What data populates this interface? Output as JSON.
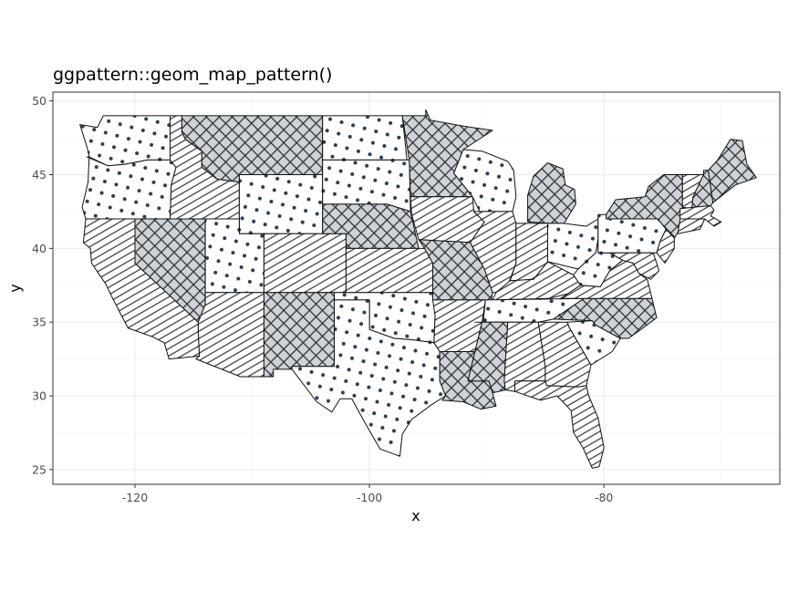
{
  "chart_data": {
    "type": "map",
    "title": "ggpattern::geom_map_pattern()",
    "xlabel": "x",
    "ylabel": "y",
    "xlim": [
      -127,
      -65
    ],
    "ylim": [
      24,
      50.6
    ],
    "x_ticks": [
      -120,
      -100,
      -80
    ],
    "x_tick_labels": [
      "-120",
      "-100",
      "-80"
    ],
    "y_ticks": [
      25,
      30,
      35,
      40,
      45,
      50
    ],
    "y_tick_labels": [
      "25",
      "30",
      "35",
      "40",
      "45",
      "50"
    ],
    "grid": true,
    "legend": "none",
    "patterns": [
      "stripe",
      "crosshatch",
      "circle"
    ],
    "colors": {
      "pattern_line": "#333333",
      "crosshatch_fill": "#4a6277",
      "circle_fill": "#2b3d4e",
      "state_border": "#111111"
    },
    "regions": [
      {
        "state": "washington",
        "pattern": "circle"
      },
      {
        "state": "oregon",
        "pattern": "circle"
      },
      {
        "state": "california",
        "pattern": "stripe"
      },
      {
        "state": "nevada",
        "pattern": "crosshatch"
      },
      {
        "state": "idaho",
        "pattern": "stripe"
      },
      {
        "state": "montana",
        "pattern": "crosshatch"
      },
      {
        "state": "wyoming",
        "pattern": "circle"
      },
      {
        "state": "utah",
        "pattern": "circle"
      },
      {
        "state": "arizona",
        "pattern": "stripe"
      },
      {
        "state": "colorado",
        "pattern": "stripe"
      },
      {
        "state": "new mexico",
        "pattern": "crosshatch"
      },
      {
        "state": "north dakota",
        "pattern": "circle"
      },
      {
        "state": "south dakota",
        "pattern": "circle"
      },
      {
        "state": "nebraska",
        "pattern": "crosshatch"
      },
      {
        "state": "kansas",
        "pattern": "stripe"
      },
      {
        "state": "oklahoma",
        "pattern": "circle"
      },
      {
        "state": "texas",
        "pattern": "circle"
      },
      {
        "state": "minnesota",
        "pattern": "crosshatch"
      },
      {
        "state": "iowa",
        "pattern": "stripe"
      },
      {
        "state": "missouri",
        "pattern": "crosshatch"
      },
      {
        "state": "arkansas",
        "pattern": "stripe"
      },
      {
        "state": "louisiana",
        "pattern": "crosshatch"
      },
      {
        "state": "wisconsin",
        "pattern": "circle"
      },
      {
        "state": "illinois",
        "pattern": "stripe"
      },
      {
        "state": "michigan",
        "pattern": "crosshatch"
      },
      {
        "state": "indiana",
        "pattern": "stripe"
      },
      {
        "state": "ohio",
        "pattern": "circle"
      },
      {
        "state": "kentucky",
        "pattern": "stripe"
      },
      {
        "state": "tennessee",
        "pattern": "circle"
      },
      {
        "state": "mississippi",
        "pattern": "crosshatch"
      },
      {
        "state": "alabama",
        "pattern": "stripe"
      },
      {
        "state": "georgia",
        "pattern": "stripe"
      },
      {
        "state": "florida",
        "pattern": "stripe"
      },
      {
        "state": "south carolina",
        "pattern": "circle"
      },
      {
        "state": "north carolina",
        "pattern": "crosshatch"
      },
      {
        "state": "virginia",
        "pattern": "stripe"
      },
      {
        "state": "west virginia",
        "pattern": "circle"
      },
      {
        "state": "pennsylvania",
        "pattern": "circle"
      },
      {
        "state": "new york",
        "pattern": "crosshatch"
      },
      {
        "state": "vermont",
        "pattern": "stripe"
      },
      {
        "state": "new hampshire",
        "pattern": "crosshatch"
      },
      {
        "state": "maine",
        "pattern": "crosshatch"
      },
      {
        "state": "massachusetts",
        "pattern": "stripe"
      },
      {
        "state": "connecticut",
        "pattern": "stripe"
      },
      {
        "state": "new jersey",
        "pattern": "stripe"
      },
      {
        "state": "maryland",
        "pattern": "stripe"
      }
    ]
  }
}
